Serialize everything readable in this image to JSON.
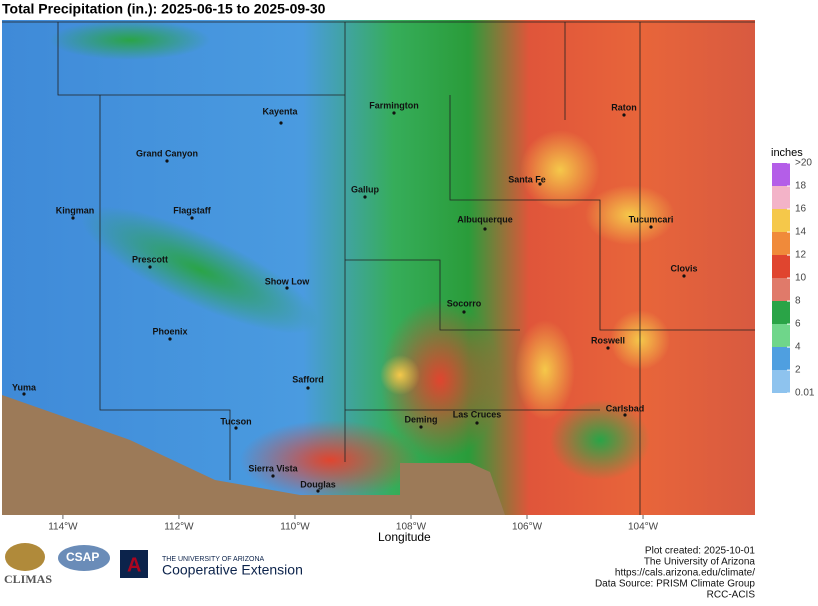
{
  "title": "Total Precipitation (in.): 2025-06-15 to 2025-09-30",
  "map": {
    "cities": [
      "Kayenta",
      "Farmington",
      "Grand Canyon",
      "Raton",
      "Santa Fe",
      "Gallup",
      "Kingman",
      "Flagstaff",
      "Albuquerque",
      "Tucumcari",
      "Prescott",
      "Clovis",
      "Show Low",
      "Socorro",
      "Phoenix",
      "Roswell",
      "Safford",
      "Yuma",
      "Carlsbad",
      "Deming",
      "Las Cruces",
      "Tucson",
      "Sierra Vista",
      "Douglas"
    ],
    "xaxis": {
      "label": "Longitude",
      "lim": [
        -115.05,
        -102.07
      ],
      "ticks": [
        {
          "value": -114,
          "label": "114°W"
        },
        {
          "value": -112,
          "label": "112°W"
        },
        {
          "value": -110,
          "label": "110°W"
        },
        {
          "value": -108,
          "label": "108°W"
        },
        {
          "value": -106,
          "label": "106°W"
        },
        {
          "value": -104,
          "label": "104°W"
        }
      ]
    }
  },
  "legend": {
    "title": "inches",
    "lim": [
      0.01,
      20
    ],
    "ticks": [
      0.01,
      2,
      4,
      6,
      8,
      10,
      12,
      14,
      16,
      18,
      {
        "value": 20,
        "label": ">20"
      }
    ],
    "colors": [
      "#8ec3ee",
      "#4f9fe0",
      "#6fd68a",
      "#2aa447",
      "#e07a6a",
      "#e0452f",
      "#f08a3a",
      "#f5c84a",
      "#f3b3c8",
      "#b45ee8"
    ]
  },
  "footer": [
    "Plot created: 2025-10-01",
    "The University of Arizona",
    "https://cals.arizona.edu/climate/",
    "Data Source: PRISM Climate Group",
    "RCC-ACIS"
  ],
  "logos": {
    "climas": "CLIMAS",
    "csap": "CSAP",
    "ua": "THE UNIVERSITY OF ARIZONA",
    "coop": "Cooperative Extension"
  }
}
